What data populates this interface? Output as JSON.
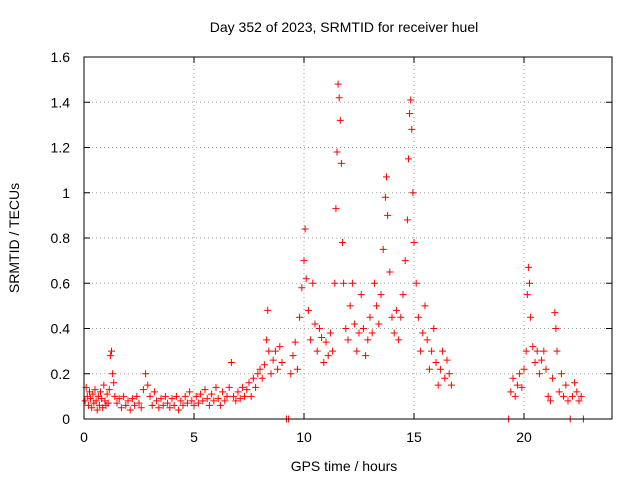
{
  "chart_data": {
    "type": "scatter",
    "title": "Day 352 of 2023, SRMTID for receiver huel",
    "xlabel": "GPS time / hours",
    "ylabel": "SRMTID / TECUs",
    "xlim": [
      0,
      24
    ],
    "ylim": [
      0,
      1.6
    ],
    "x_ticks": [
      0,
      5,
      10,
      15,
      20
    ],
    "x_tick_labels": [
      "0",
      "5",
      "10",
      "15",
      "20"
    ],
    "y_ticks": [
      0,
      0.2,
      0.4,
      0.6,
      0.8,
      1.0,
      1.2,
      1.4,
      1.6
    ],
    "y_tick_labels": [
      "0",
      "0.2",
      "0.4",
      "0.6",
      "0.8",
      "1",
      "1.2",
      "1.4",
      "1.6"
    ],
    "grid": true,
    "marker": "+",
    "color": "#ff0000",
    "series": [
      {
        "name": "SRMTID",
        "points": [
          [
            0.05,
            0.08
          ],
          [
            0.1,
            0.14
          ],
          [
            0.15,
            0.1
          ],
          [
            0.2,
            0.06
          ],
          [
            0.25,
            0.12
          ],
          [
            0.3,
            0.09
          ],
          [
            0.35,
            0.05
          ],
          [
            0.4,
            0.11
          ],
          [
            0.45,
            0.07
          ],
          [
            0.5,
            0.13
          ],
          [
            0.55,
            0.08
          ],
          [
            0.6,
            0.04
          ],
          [
            0.65,
            0.1
          ],
          [
            0.7,
            0.06
          ],
          [
            0.75,
            0.12
          ],
          [
            0.8,
            0.09
          ],
          [
            0.85,
            0.05
          ],
          [
            0.9,
            0.15
          ],
          [
            0.95,
            0.08
          ],
          [
            1.0,
            0.06
          ],
          [
            1.05,
            0.11
          ],
          [
            1.1,
            0.07
          ],
          [
            1.15,
            0.13
          ],
          [
            1.2,
            0.28
          ],
          [
            1.25,
            0.3
          ],
          [
            1.3,
            0.2
          ],
          [
            1.35,
            0.16
          ],
          [
            1.4,
            0.1
          ],
          [
            1.5,
            0.07
          ],
          [
            1.6,
            0.09
          ],
          [
            1.7,
            0.05
          ],
          [
            1.8,
            0.1
          ],
          [
            1.9,
            0.06
          ],
          [
            2.0,
            0.08
          ],
          [
            2.1,
            0.04
          ],
          [
            2.2,
            0.09
          ],
          [
            2.3,
            0.06
          ],
          [
            2.4,
            0.1
          ],
          [
            2.5,
            0.07
          ],
          [
            2.6,
            0.05
          ],
          [
            2.7,
            0.13
          ],
          [
            2.8,
            0.2
          ],
          [
            2.9,
            0.15
          ],
          [
            3.0,
            0.1
          ],
          [
            3.1,
            0.06
          ],
          [
            3.2,
            0.12
          ],
          [
            3.3,
            0.08
          ],
          [
            3.4,
            0.05
          ],
          [
            3.5,
            0.09
          ],
          [
            3.6,
            0.06
          ],
          [
            3.7,
            0.1
          ],
          [
            3.8,
            0.07
          ],
          [
            3.9,
            0.05
          ],
          [
            4.0,
            0.09
          ],
          [
            4.1,
            0.06
          ],
          [
            4.2,
            0.1
          ],
          [
            4.3,
            0.04
          ],
          [
            4.4,
            0.08
          ],
          [
            4.5,
            0.06
          ],
          [
            4.6,
            0.1
          ],
          [
            4.7,
            0.07
          ],
          [
            4.8,
            0.12
          ],
          [
            4.9,
            0.08
          ],
          [
            5.0,
            0.06
          ],
          [
            5.1,
            0.1
          ],
          [
            5.2,
            0.07
          ],
          [
            5.3,
            0.11
          ],
          [
            5.4,
            0.08
          ],
          [
            5.5,
            0.13
          ],
          [
            5.6,
            0.09
          ],
          [
            5.7,
            0.06
          ],
          [
            5.8,
            0.11
          ],
          [
            5.9,
            0.08
          ],
          [
            6.0,
            0.14
          ],
          [
            6.1,
            0.09
          ],
          [
            6.2,
            0.06
          ],
          [
            6.3,
            0.12
          ],
          [
            6.4,
            0.08
          ],
          [
            6.5,
            0.1
          ],
          [
            6.6,
            0.14
          ],
          [
            6.7,
            0.25
          ],
          [
            6.8,
            0.1
          ],
          [
            6.9,
            0.08
          ],
          [
            7.0,
            0.12
          ],
          [
            7.1,
            0.09
          ],
          [
            7.2,
            0.14
          ],
          [
            7.3,
            0.1
          ],
          [
            7.4,
            0.13
          ],
          [
            7.5,
            0.16
          ],
          [
            7.6,
            0.1
          ],
          [
            7.7,
            0.18
          ],
          [
            7.8,
            0.14
          ],
          [
            7.9,
            0.2
          ],
          [
            8.0,
            0.22
          ],
          [
            8.1,
            0.18
          ],
          [
            8.2,
            0.24
          ],
          [
            8.3,
            0.35
          ],
          [
            8.35,
            0.48
          ],
          [
            8.4,
            0.3
          ],
          [
            8.5,
            0.2
          ],
          [
            8.6,
            0.26
          ],
          [
            8.7,
            0.3
          ],
          [
            8.8,
            0.22
          ],
          [
            8.9,
            0.32
          ],
          [
            9.0,
            0.25
          ],
          [
            9.2,
            0.0
          ],
          [
            9.3,
            0.0
          ],
          [
            9.4,
            0.2
          ],
          [
            9.5,
            0.28
          ],
          [
            9.6,
            0.34
          ],
          [
            9.7,
            0.22
          ],
          [
            9.8,
            0.45
          ],
          [
            9.9,
            0.58
          ],
          [
            10.0,
            0.7
          ],
          [
            10.05,
            0.84
          ],
          [
            10.1,
            0.62
          ],
          [
            10.2,
            0.48
          ],
          [
            10.3,
            0.35
          ],
          [
            10.4,
            0.6
          ],
          [
            10.5,
            0.42
          ],
          [
            10.6,
            0.3
          ],
          [
            10.7,
            0.4
          ],
          [
            10.8,
            0.36
          ],
          [
            10.9,
            0.25
          ],
          [
            11.0,
            0.34
          ],
          [
            11.1,
            0.28
          ],
          [
            11.2,
            0.38
          ],
          [
            11.3,
            0.3
          ],
          [
            11.4,
            0.6
          ],
          [
            11.45,
            0.93
          ],
          [
            11.5,
            1.18
          ],
          [
            11.55,
            1.48
          ],
          [
            11.6,
            1.42
          ],
          [
            11.65,
            1.32
          ],
          [
            11.7,
            1.13
          ],
          [
            11.75,
            0.78
          ],
          [
            11.8,
            0.6
          ],
          [
            11.9,
            0.4
          ],
          [
            12.0,
            0.35
          ],
          [
            12.1,
            0.5
          ],
          [
            12.2,
            0.6
          ],
          [
            12.3,
            0.42
          ],
          [
            12.4,
            0.3
          ],
          [
            12.5,
            0.38
          ],
          [
            12.6,
            0.55
          ],
          [
            12.7,
            0.4
          ],
          [
            12.8,
            0.28
          ],
          [
            12.9,
            0.35
          ],
          [
            13.0,
            0.45
          ],
          [
            13.1,
            0.38
          ],
          [
            13.2,
            0.6
          ],
          [
            13.3,
            0.5
          ],
          [
            13.4,
            0.42
          ],
          [
            13.5,
            0.55
          ],
          [
            13.6,
            0.75
          ],
          [
            13.7,
            0.98
          ],
          [
            13.75,
            1.07
          ],
          [
            13.8,
            0.9
          ],
          [
            13.9,
            0.65
          ],
          [
            14.0,
            0.45
          ],
          [
            14.1,
            0.38
          ],
          [
            14.2,
            0.48
          ],
          [
            14.3,
            0.35
          ],
          [
            14.4,
            0.45
          ],
          [
            14.5,
            0.55
          ],
          [
            14.6,
            0.7
          ],
          [
            14.7,
            0.88
          ],
          [
            14.75,
            1.15
          ],
          [
            14.8,
            1.35
          ],
          [
            14.85,
            1.41
          ],
          [
            14.9,
            1.28
          ],
          [
            14.95,
            1.0
          ],
          [
            15.0,
            0.78
          ],
          [
            15.1,
            0.6
          ],
          [
            15.2,
            0.45
          ],
          [
            15.3,
            0.3
          ],
          [
            15.4,
            0.38
          ],
          [
            15.5,
            0.5
          ],
          [
            15.6,
            0.35
          ],
          [
            15.7,
            0.22
          ],
          [
            15.8,
            0.3
          ],
          [
            15.9,
            0.4
          ],
          [
            16.0,
            0.25
          ],
          [
            16.1,
            0.15
          ],
          [
            16.2,
            0.22
          ],
          [
            16.3,
            0.3
          ],
          [
            16.4,
            0.18
          ],
          [
            16.5,
            0.26
          ],
          [
            16.6,
            0.2
          ],
          [
            16.7,
            0.15
          ],
          [
            19.3,
            0.0
          ],
          [
            19.4,
            0.12
          ],
          [
            19.5,
            0.18
          ],
          [
            19.6,
            0.1
          ],
          [
            19.7,
            0.15
          ],
          [
            19.8,
            0.2
          ],
          [
            19.9,
            0.14
          ],
          [
            20.0,
            0.22
          ],
          [
            20.1,
            0.3
          ],
          [
            20.15,
            0.55
          ],
          [
            20.2,
            0.67
          ],
          [
            20.25,
            0.6
          ],
          [
            20.3,
            0.45
          ],
          [
            20.4,
            0.32
          ],
          [
            20.5,
            0.25
          ],
          [
            20.6,
            0.3
          ],
          [
            20.7,
            0.2
          ],
          [
            20.8,
            0.26
          ],
          [
            20.9,
            0.3
          ],
          [
            21.0,
            0.22
          ],
          [
            21.1,
            0.1
          ],
          [
            21.2,
            0.08
          ],
          [
            21.3,
            0.18
          ],
          [
            21.4,
            0.47
          ],
          [
            21.45,
            0.4
          ],
          [
            21.5,
            0.3
          ],
          [
            21.6,
            0.12
          ],
          [
            21.7,
            0.2
          ],
          [
            21.8,
            0.1
          ],
          [
            21.9,
            0.15
          ],
          [
            22.0,
            0.08
          ],
          [
            22.1,
            0.0
          ],
          [
            22.2,
            0.1
          ],
          [
            22.3,
            0.16
          ],
          [
            22.4,
            0.12
          ],
          [
            22.5,
            0.08
          ],
          [
            22.6,
            0.1
          ],
          [
            22.7,
            0.0
          ]
        ]
      }
    ]
  }
}
